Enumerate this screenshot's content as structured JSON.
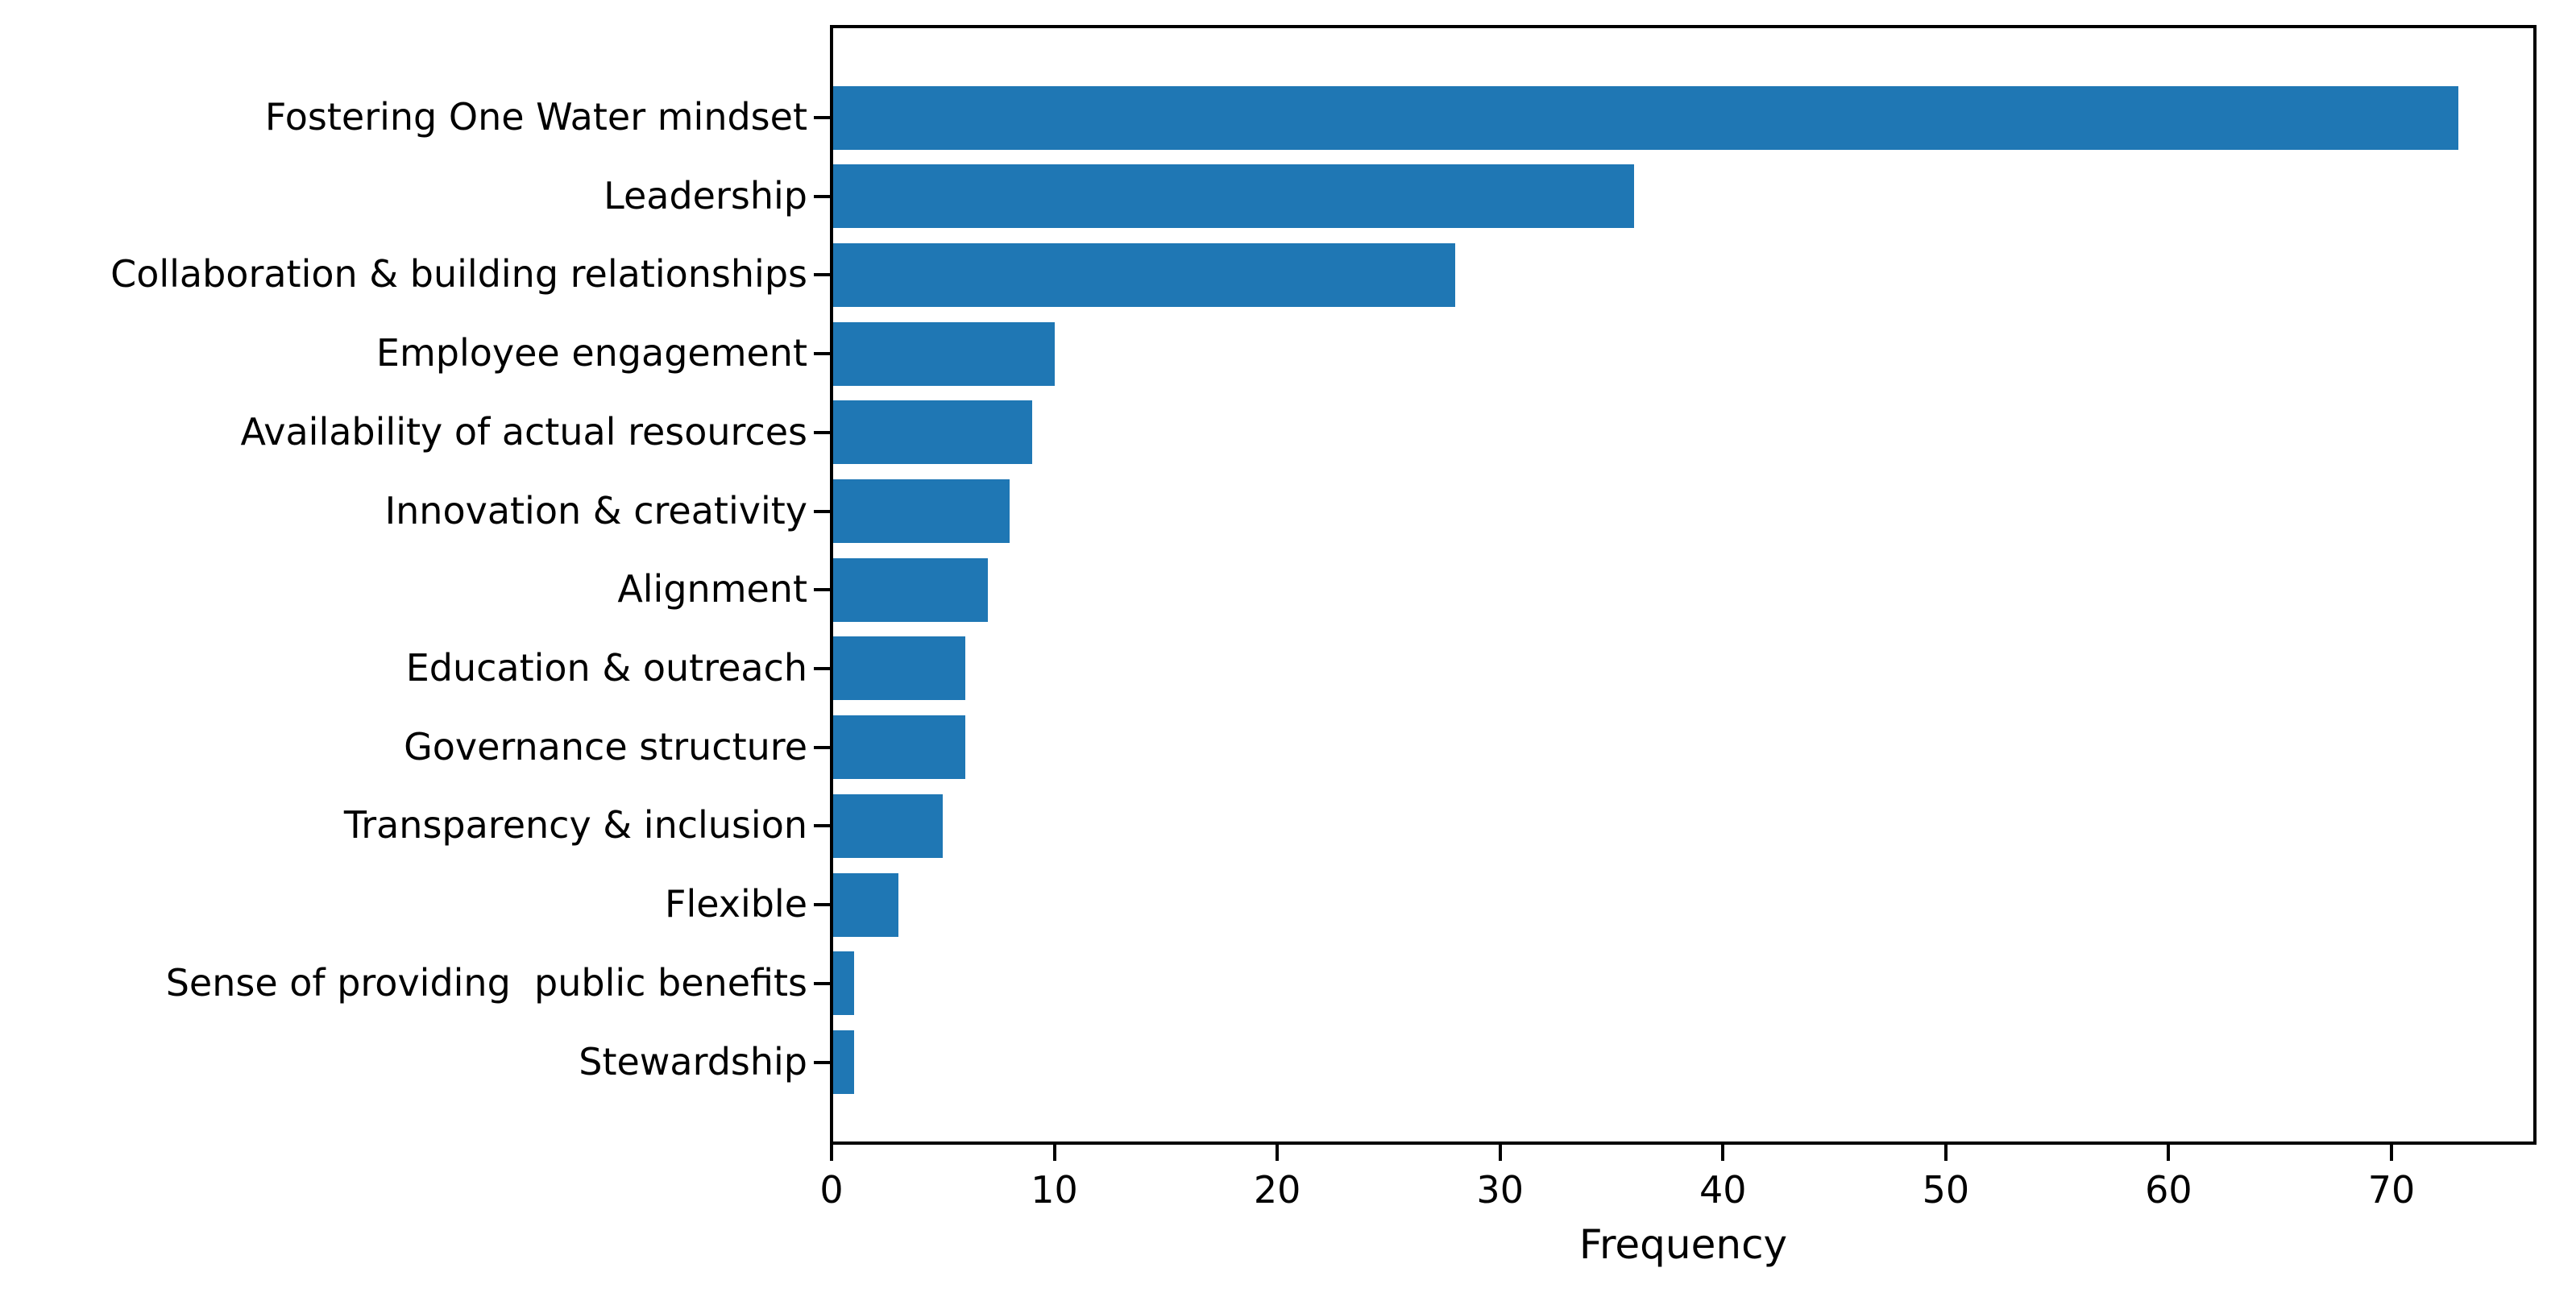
{
  "chart_data": {
    "type": "bar",
    "orientation": "horizontal",
    "title": "",
    "xlabel": "Frequency",
    "ylabel": "",
    "categories": [
      "Fostering One Water mindset",
      "Leadership",
      "Collaboration & building relationships",
      "Employee engagement",
      "Availability of actual resources",
      "Innovation & creativity",
      "Alignment",
      "Education & outreach",
      "Governance structure",
      "Transparency & inclusion",
      "Flexible",
      "Sense of providing  public benefits",
      "Stewardship"
    ],
    "values": [
      73,
      36,
      28,
      10,
      9,
      8,
      7,
      6,
      6,
      5,
      3,
      1,
      1
    ],
    "xticks": [
      0,
      10,
      20,
      30,
      40,
      50,
      60,
      70
    ],
    "xlim": [
      0,
      76.5
    ],
    "grid": false,
    "legend": null,
    "bar_color": "#1f77b4",
    "axis_color": "#000000",
    "text_color": "#000000",
    "background_color": "#ffffff"
  }
}
